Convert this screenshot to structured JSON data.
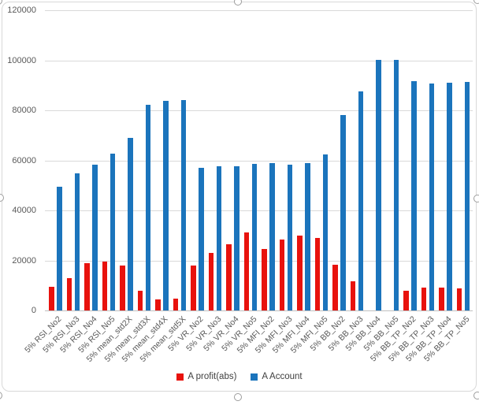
{
  "chart_data": {
    "type": "bar",
    "title": "",
    "categories": [
      "5% RSI_No2",
      "5% RSI_No3",
      "5% RSI_No4",
      "5% RSI_No5",
      "5% mean_std2X",
      "5% mean_std3X",
      "5% mean_std4X",
      "5% mean_std5X",
      "5% VR_No2",
      "5% VR_No3",
      "5% VR_No4",
      "5% VR_No5",
      "5% MFI_No2",
      "5% MFI_No3",
      "5% MFI_No4",
      "5% MFI_No5",
      "5% BB_No2",
      "5% BB_No3",
      "5% BB_No4",
      "5% BB_No5",
      "5% BB_TP_No2",
      "5% BB_TP_No3",
      "5% BB_TP_No4",
      "5% BB_TP_No5"
    ],
    "series": [
      {
        "name": "A profit(abs)",
        "color": "#e8120d",
        "values": [
          9600,
          12800,
          18900,
          19600,
          17900,
          7800,
          4400,
          4700,
          18000,
          22900,
          26600,
          31300,
          24600,
          28400,
          30000,
          29000,
          18400,
          11700,
          0,
          0,
          8000,
          9100,
          9000,
          8700
        ]
      },
      {
        "name": "A Account",
        "color": "#1b74bc",
        "values": [
          49500,
          54800,
          58200,
          62800,
          69100,
          82200,
          83800,
          84100,
          56900,
          57600,
          57700,
          58500,
          59000,
          58400,
          58800,
          62400,
          78000,
          87600,
          100300,
          100300,
          91700,
          90700,
          90900,
          91500
        ]
      }
    ],
    "xlabel": "",
    "ylabel": "",
    "ylim": [
      0,
      120000
    ],
    "y_tick_step": 20000,
    "y_tick_labels": [
      "0",
      "20000",
      "40000",
      "60000",
      "80000",
      "100000",
      "120000"
    ],
    "grid": "horizontal",
    "legend_position": "bottom"
  },
  "colors": {
    "gridline": "#d9d9d9",
    "axis_line": "#bfbfbf",
    "axis_text": "#595959",
    "legend_text": "#404040",
    "chart_border": "#d8d8d8",
    "selection_handle_border": "#9d9d9d"
  },
  "ui": {
    "selection_handles": [
      "top-left",
      "top-center",
      "top-right",
      "middle-left",
      "middle-right",
      "bottom-left",
      "bottom-center",
      "bottom-right"
    ]
  }
}
